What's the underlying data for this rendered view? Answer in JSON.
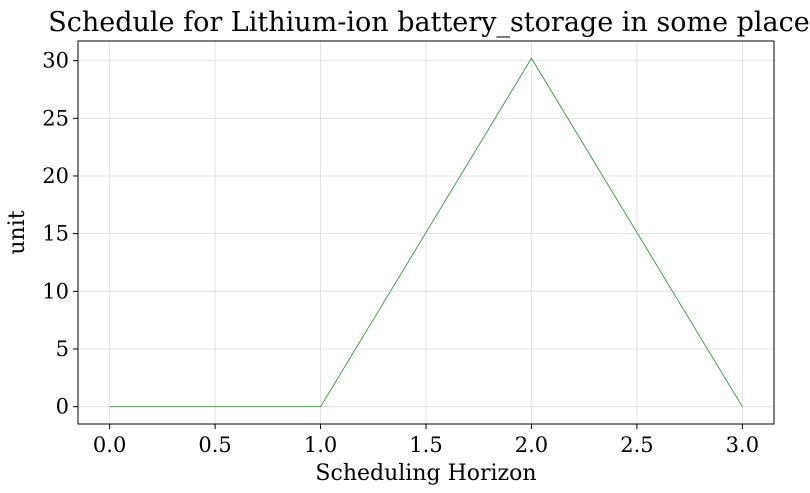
{
  "chart_data": {
    "type": "line",
    "title": "Schedule for Lithium-ion battery_storage in some place",
    "xlabel": "Scheduling Horizon",
    "ylabel": "unit",
    "x": [
      0,
      1,
      2,
      3
    ],
    "series": [
      {
        "values": [
          0,
          0,
          30.2,
          0
        ],
        "color": "#2ca02c"
      }
    ],
    "xlim": [
      -0.15,
      3.15
    ],
    "ylim": [
      -1.5,
      31.7
    ],
    "xticks": [
      0.0,
      0.5,
      1.0,
      1.5,
      2.0,
      2.5,
      3.0
    ],
    "xtick_labels": [
      "0.0",
      "0.5",
      "1.0",
      "1.5",
      "2.0",
      "2.5",
      "3.0"
    ],
    "yticks": [
      0,
      5,
      10,
      15,
      20,
      25,
      30
    ],
    "ytick_labels": [
      "0",
      "5",
      "10",
      "15",
      "20",
      "25",
      "30"
    ],
    "grid": true
  }
}
